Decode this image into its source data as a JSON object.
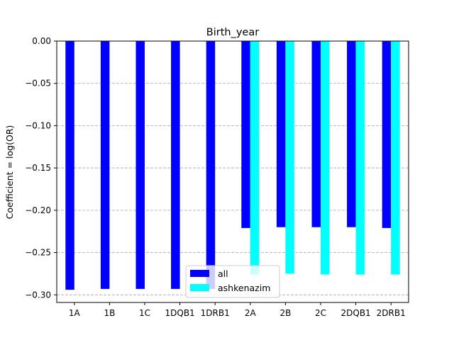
{
  "chart_data": {
    "type": "bar",
    "title": "Birth_year",
    "xlabel": "",
    "ylabel": "Coefficient = log(OR)",
    "categories": [
      "1A",
      "1B",
      "1C",
      "1DQB1",
      "1DRB1",
      "2A",
      "2B",
      "2C",
      "2DQB1",
      "2DRB1"
    ],
    "series": [
      {
        "name": "all",
        "color": "#0000ff",
        "values": [
          -0.294,
          -0.293,
          -0.293,
          -0.293,
          -0.293,
          -0.221,
          -0.22,
          -0.22,
          -0.22,
          -0.221
        ]
      },
      {
        "name": "ashkenazim",
        "color": "#00ffff",
        "values": [
          null,
          null,
          null,
          null,
          null,
          -0.276,
          -0.275,
          -0.276,
          -0.276,
          -0.276
        ]
      }
    ],
    "ylim": [
      -0.309,
      0.0
    ],
    "yticks": [
      0.0,
      -0.05,
      -0.1,
      -0.15,
      -0.2,
      -0.25,
      -0.3
    ],
    "ytick_labels": [
      "0.00",
      "−0.05",
      "−0.10",
      "−0.15",
      "−0.20",
      "−0.25",
      "−0.30"
    ],
    "grid": "y-dashed",
    "legend_placement": "lower center"
  }
}
